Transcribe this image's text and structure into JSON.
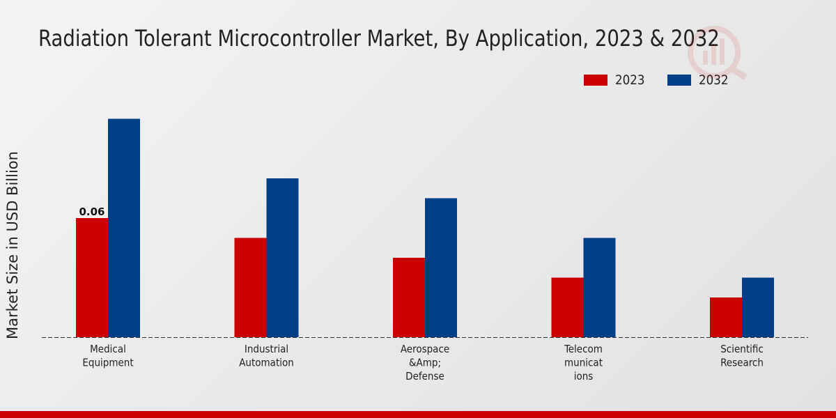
{
  "chart_data": {
    "type": "bar",
    "title": "Radiation Tolerant Microcontroller Market, By Application, 2023 & 2032",
    "xlabel": "",
    "ylabel": "Market Size in USD Billion",
    "categories": [
      [
        "Medical",
        "Equipment"
      ],
      [
        "Industrial",
        "Automation"
      ],
      [
        "Aerospace",
        "&Amp;",
        "Defense"
      ],
      [
        "Telecom",
        "municat",
        "ions"
      ],
      [
        "Scientific",
        "Research"
      ]
    ],
    "series": [
      {
        "name": "2023",
        "color": "#cc0000",
        "values": [
          0.06,
          0.05,
          0.04,
          0.03,
          0.02
        ]
      },
      {
        "name": "2032",
        "color": "#003f87",
        "values": [
          0.11,
          0.08,
          0.07,
          0.05,
          0.03
        ]
      }
    ],
    "data_labels": [
      {
        "series": 0,
        "index": 0,
        "text": "0.06"
      }
    ],
    "ylim": [
      0,
      0.12
    ],
    "grid": false,
    "legend": "top-right"
  }
}
